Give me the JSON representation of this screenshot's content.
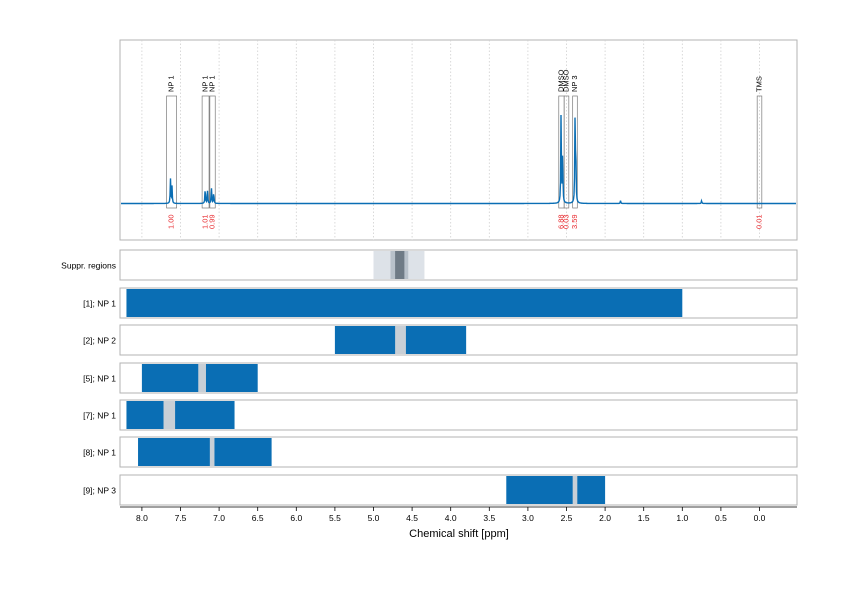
{
  "chart_data": {
    "type": "line",
    "xlabel": "Chemical shift [ppm]",
    "x_axis": {
      "reversed": true,
      "range": [
        8.22,
        -0.5
      ],
      "ticks": [
        8.0,
        7.5,
        7.0,
        6.5,
        6.0,
        5.5,
        5.0,
        4.5,
        4.0,
        3.5,
        3.0,
        2.5,
        2.0,
        1.5,
        1.0,
        0.5,
        0.0
      ],
      "tick_labels": [
        "8.0",
        "7.5",
        "7.0",
        "6.5",
        "6.0",
        "5.5",
        "5.0",
        "4.5",
        "4.0",
        "3.5",
        "3.0",
        "2.5",
        "2.0",
        "1.5",
        "1.0",
        "0.5",
        "0.0"
      ]
    },
    "grid": true,
    "spectrum": {
      "peaks": [
        {
          "ppm": 7.63,
          "height": 0.26
        },
        {
          "ppm": 7.61,
          "height": 0.18
        },
        {
          "ppm": 7.18,
          "height": 0.18
        },
        {
          "ppm": 7.15,
          "height": 0.13
        },
        {
          "ppm": 7.1,
          "height": 0.18
        },
        {
          "ppm": 7.07,
          "height": 0.13
        },
        {
          "ppm": 2.57,
          "height": 1.0
        },
        {
          "ppm": 2.55,
          "height": 0.55
        },
        {
          "ppm": 2.39,
          "height": 0.82
        },
        {
          "ppm": 2.38,
          "height": 0.6
        },
        {
          "ppm": 1.8,
          "height": 0.03
        },
        {
          "ppm": 0.75,
          "height": 0.03
        }
      ]
    },
    "annotations": [
      {
        "label": "NP 1",
        "start": 7.68,
        "end": 7.55,
        "value": "1.00"
      },
      {
        "label": "NP 1",
        "start": 7.22,
        "end": 7.13,
        "value": "1.01"
      },
      {
        "label": "NP 1",
        "start": 7.12,
        "end": 7.05,
        "value": "0.99"
      },
      {
        "label": "DMSO",
        "start": 2.6,
        "end": 2.53,
        "value": "6.88"
      },
      {
        "label": "DMSO",
        "start": 2.53,
        "end": 2.47,
        "value": "0.03"
      },
      {
        "label": "NP 3",
        "start": 2.42,
        "end": 2.36,
        "value": "3.59"
      },
      {
        "label": "TMS",
        "start": 0.03,
        "end": -0.03,
        "value": "0.01"
      }
    ],
    "lanes": [
      {
        "label": "Suppr. regions",
        "type": "suppression",
        "bands": [
          {
            "start": 5.0,
            "end": 4.34,
            "level": "light"
          },
          {
            "start": 4.78,
            "end": 4.55,
            "level": "medium"
          },
          {
            "start": 4.72,
            "end": 4.6,
            "level": "dark"
          }
        ]
      },
      {
        "label": "[1]; NP 1",
        "type": "bars",
        "bars": [
          {
            "start": 8.2,
            "end": 1.0
          }
        ],
        "gaps": []
      },
      {
        "label": "[2]; NP 2",
        "type": "bars",
        "bars": [
          {
            "start": 5.5,
            "end": 3.8
          }
        ],
        "gaps": [
          {
            "start": 4.72,
            "end": 4.58
          }
        ]
      },
      {
        "label": "[5]; NP 1",
        "type": "bars",
        "bars": [
          {
            "start": 8.0,
            "end": 6.5
          }
        ],
        "gaps": [
          {
            "start": 7.27,
            "end": 7.17
          }
        ]
      },
      {
        "label": "[7]; NP 1",
        "type": "bars",
        "bars": [
          {
            "start": 8.2,
            "end": 6.8
          }
        ],
        "gaps": [
          {
            "start": 7.72,
            "end": 7.57
          }
        ]
      },
      {
        "label": "[8]; NP 1",
        "type": "bars",
        "bars": [
          {
            "start": 8.05,
            "end": 6.32
          }
        ],
        "gaps": [
          {
            "start": 7.12,
            "end": 7.06
          }
        ]
      },
      {
        "label": "[9]; NP 3",
        "type": "bars",
        "bars": [
          {
            "start": 3.28,
            "end": 2.0
          }
        ],
        "gaps": [
          {
            "start": 2.42,
            "end": 2.36
          }
        ]
      }
    ],
    "colors": {
      "spectrum": "#0a6eb4",
      "bar": "#0a6eb4",
      "gap": "#c8cfd6",
      "suppression_light": "#dde2e8",
      "suppression_medium": "#b8c1ca",
      "suppression_dark": "#6f7b86",
      "annotation_value": "#e8282d",
      "frame": "#b3b3b3",
      "grid": "#d0d0d0"
    }
  }
}
